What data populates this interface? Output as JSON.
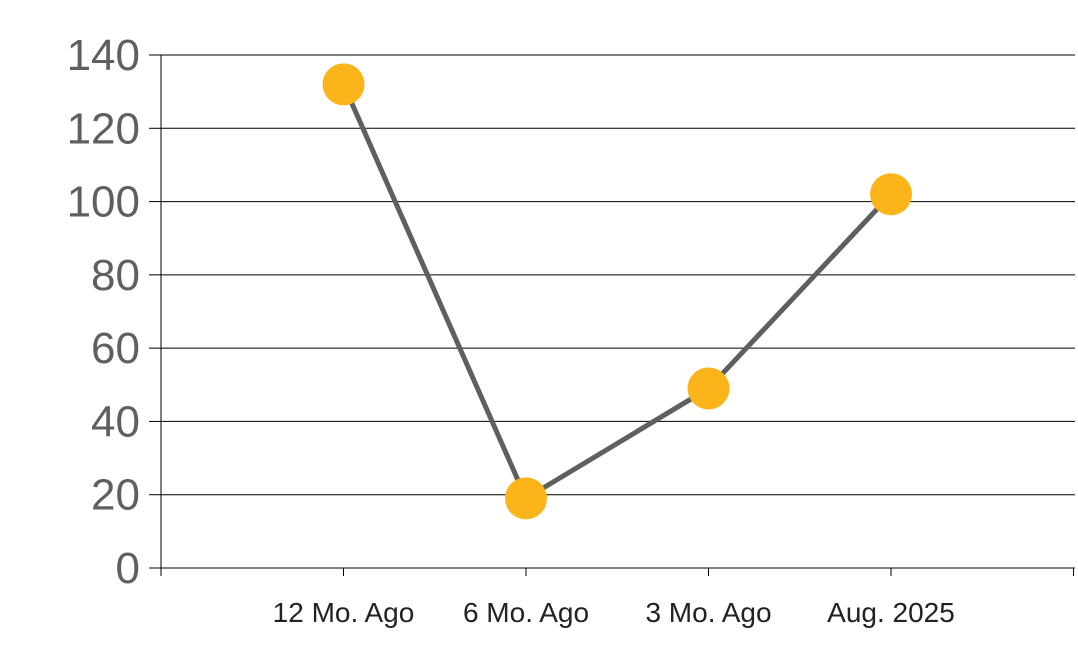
{
  "chart_data": {
    "type": "line",
    "categories": [
      "12 Mo. Ago",
      "6 Mo. Ago",
      "3 Mo. Ago",
      "Aug. 2025"
    ],
    "values": [
      132,
      19,
      49,
      102
    ],
    "ylim": [
      0,
      140
    ],
    "yticks": [
      "0",
      "20",
      "40",
      "60",
      "80",
      "100",
      "120",
      "140"
    ],
    "grid": true,
    "legend": "none",
    "colors": {
      "line": "#5f5f5f",
      "marker": "#fbb41a",
      "grid": "#000000"
    }
  }
}
